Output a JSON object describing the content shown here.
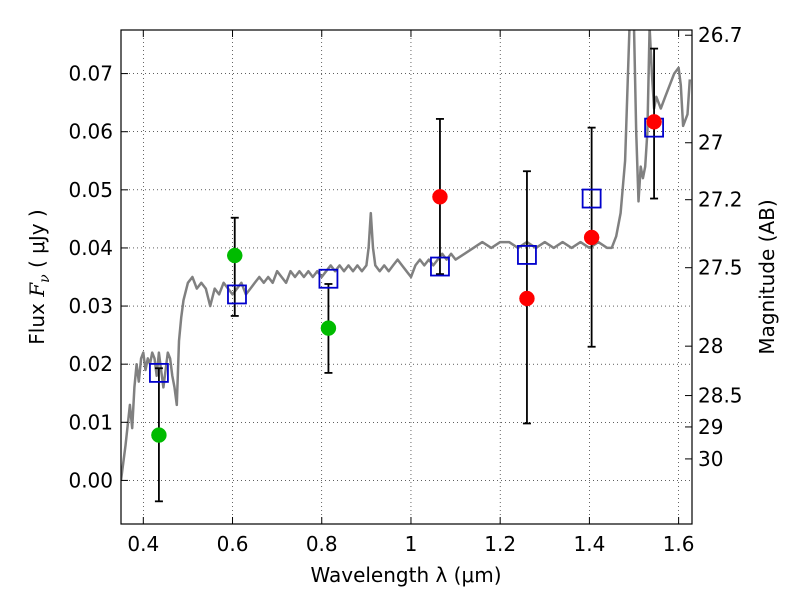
{
  "chart_data": {
    "type": "scatter",
    "xlabel": "Wavelength  λ (μm)",
    "ylabel_parts": {
      "pre": "Flux  ",
      "var": "F",
      "sub": "ν",
      "post": "  ( μJy )"
    },
    "y2label": "Magnitude (AB)",
    "xlim": [
      0.35,
      1.63
    ],
    "ylim": [
      -0.0075,
      0.0775
    ],
    "x_ticks": [
      0.4,
      0.6,
      0.8,
      1.0,
      1.2,
      1.4,
      1.6
    ],
    "x_tick_labels": [
      "0.4",
      "0.6",
      "0.8",
      "1",
      "1.2",
      "1.4",
      "1.6"
    ],
    "y_ticks": [
      0.0,
      0.01,
      0.02,
      0.03,
      0.04,
      0.05,
      0.06,
      0.07
    ],
    "y_tick_labels": [
      "0.00",
      "0.01",
      "0.02",
      "0.03",
      "0.04",
      "0.05",
      "0.06",
      "0.07"
    ],
    "y2_ticks": [
      {
        "label": "26.7",
        "flux": 0.0766
      },
      {
        "label": "27",
        "flux": 0.0581
      },
      {
        "label": "27.2",
        "flux": 0.0483
      },
      {
        "label": "27.5",
        "flux": 0.0366
      },
      {
        "label": "28",
        "flux": 0.0231
      },
      {
        "label": "28.5",
        "flux": 0.0146
      },
      {
        "label": "29",
        "flux": 0.0092
      },
      {
        "label": "30",
        "flux": 0.0037
      }
    ],
    "grid": true,
    "colors": {
      "template": "#808080",
      "model": "#0000cc",
      "green": "#00bb00",
      "red": "#ff0000",
      "error": "#000000"
    },
    "template_curve": {
      "x": [
        0.35,
        0.36,
        0.37,
        0.375,
        0.38,
        0.385,
        0.39,
        0.395,
        0.4,
        0.405,
        0.41,
        0.415,
        0.42,
        0.425,
        0.43,
        0.435,
        0.44,
        0.445,
        0.45,
        0.455,
        0.46,
        0.465,
        0.47,
        0.475,
        0.48,
        0.485,
        0.49,
        0.5,
        0.51,
        0.52,
        0.53,
        0.54,
        0.55,
        0.56,
        0.57,
        0.58,
        0.59,
        0.6,
        0.61,
        0.62,
        0.63,
        0.64,
        0.65,
        0.66,
        0.67,
        0.68,
        0.69,
        0.7,
        0.71,
        0.72,
        0.73,
        0.74,
        0.75,
        0.76,
        0.77,
        0.78,
        0.79,
        0.8,
        0.81,
        0.82,
        0.83,
        0.84,
        0.85,
        0.86,
        0.87,
        0.88,
        0.89,
        0.9,
        0.905,
        0.91,
        0.915,
        0.92,
        0.93,
        0.94,
        0.95,
        0.96,
        0.97,
        0.98,
        0.99,
        1.0,
        1.01,
        1.02,
        1.03,
        1.04,
        1.05,
        1.06,
        1.07,
        1.08,
        1.09,
        1.1,
        1.12,
        1.14,
        1.16,
        1.18,
        1.2,
        1.22,
        1.24,
        1.26,
        1.28,
        1.3,
        1.32,
        1.34,
        1.36,
        1.38,
        1.4,
        1.42,
        1.44,
        1.45,
        1.46,
        1.47,
        1.48,
        1.49,
        1.5,
        1.505,
        1.51,
        1.515,
        1.52,
        1.525,
        1.53,
        1.535,
        1.54,
        1.545,
        1.55,
        1.56,
        1.57,
        1.58,
        1.59,
        1.6,
        1.605,
        1.61,
        1.62,
        1.625
      ],
      "y": [
        0.0,
        0.006,
        0.013,
        0.009,
        0.016,
        0.02,
        0.017,
        0.021,
        0.022,
        0.019,
        0.021,
        0.02,
        0.022,
        0.021,
        0.018,
        0.022,
        0.019,
        0.016,
        0.019,
        0.022,
        0.021,
        0.018,
        0.016,
        0.013,
        0.024,
        0.028,
        0.031,
        0.034,
        0.035,
        0.033,
        0.034,
        0.033,
        0.03,
        0.033,
        0.032,
        0.034,
        0.033,
        0.032,
        0.033,
        0.034,
        0.032,
        0.033,
        0.034,
        0.035,
        0.034,
        0.035,
        0.034,
        0.036,
        0.035,
        0.034,
        0.036,
        0.035,
        0.036,
        0.035,
        0.036,
        0.035,
        0.036,
        0.035,
        0.036,
        0.037,
        0.036,
        0.037,
        0.036,
        0.037,
        0.036,
        0.037,
        0.036,
        0.037,
        0.04,
        0.046,
        0.04,
        0.037,
        0.036,
        0.037,
        0.036,
        0.037,
        0.038,
        0.037,
        0.036,
        0.035,
        0.037,
        0.038,
        0.037,
        0.038,
        0.037,
        0.038,
        0.039,
        0.038,
        0.039,
        0.038,
        0.039,
        0.04,
        0.041,
        0.04,
        0.041,
        0.041,
        0.04,
        0.041,
        0.04,
        0.041,
        0.04,
        0.041,
        0.04,
        0.041,
        0.04,
        0.041,
        0.04,
        0.04,
        0.042,
        0.046,
        0.055,
        0.078,
        0.078,
        0.06,
        0.048,
        0.054,
        0.052,
        0.054,
        0.06,
        0.078,
        0.07,
        0.064,
        0.066,
        0.064,
        0.066,
        0.068,
        0.07,
        0.071,
        0.068,
        0.061,
        0.063,
        0.069
      ]
    },
    "series": [
      {
        "name": "model",
        "marker": "open-square",
        "x": [
          0.435,
          0.61,
          0.815,
          1.065,
          1.26,
          1.405,
          1.545
        ],
        "y": [
          0.0185,
          0.032,
          0.0347,
          0.0368,
          0.0388,
          0.0485,
          0.0607
        ]
      },
      {
        "name": "green-detections",
        "marker": "filled-circle",
        "x": [
          0.435,
          0.605,
          0.815
        ],
        "y": [
          0.0078,
          0.0387,
          0.0262
        ]
      },
      {
        "name": "red-detections",
        "marker": "filled-circle",
        "x": [
          1.065,
          1.26,
          1.405,
          1.545
        ],
        "y": [
          0.0488,
          0.0313,
          0.0418,
          0.0617
        ]
      }
    ],
    "error_bars": [
      {
        "x": 0.435,
        "low": -0.0036,
        "high": 0.0193
      },
      {
        "x": 0.605,
        "low": 0.0283,
        "high": 0.0452
      },
      {
        "x": 0.815,
        "low": 0.0185,
        "high": 0.0338
      },
      {
        "x": 1.065,
        "low": 0.0355,
        "high": 0.0622
      },
      {
        "x": 1.26,
        "low": 0.0098,
        "high": 0.0532
      },
      {
        "x": 1.405,
        "low": 0.023,
        "high": 0.0607
      },
      {
        "x": 1.545,
        "low": 0.0485,
        "high": 0.0743
      }
    ]
  }
}
